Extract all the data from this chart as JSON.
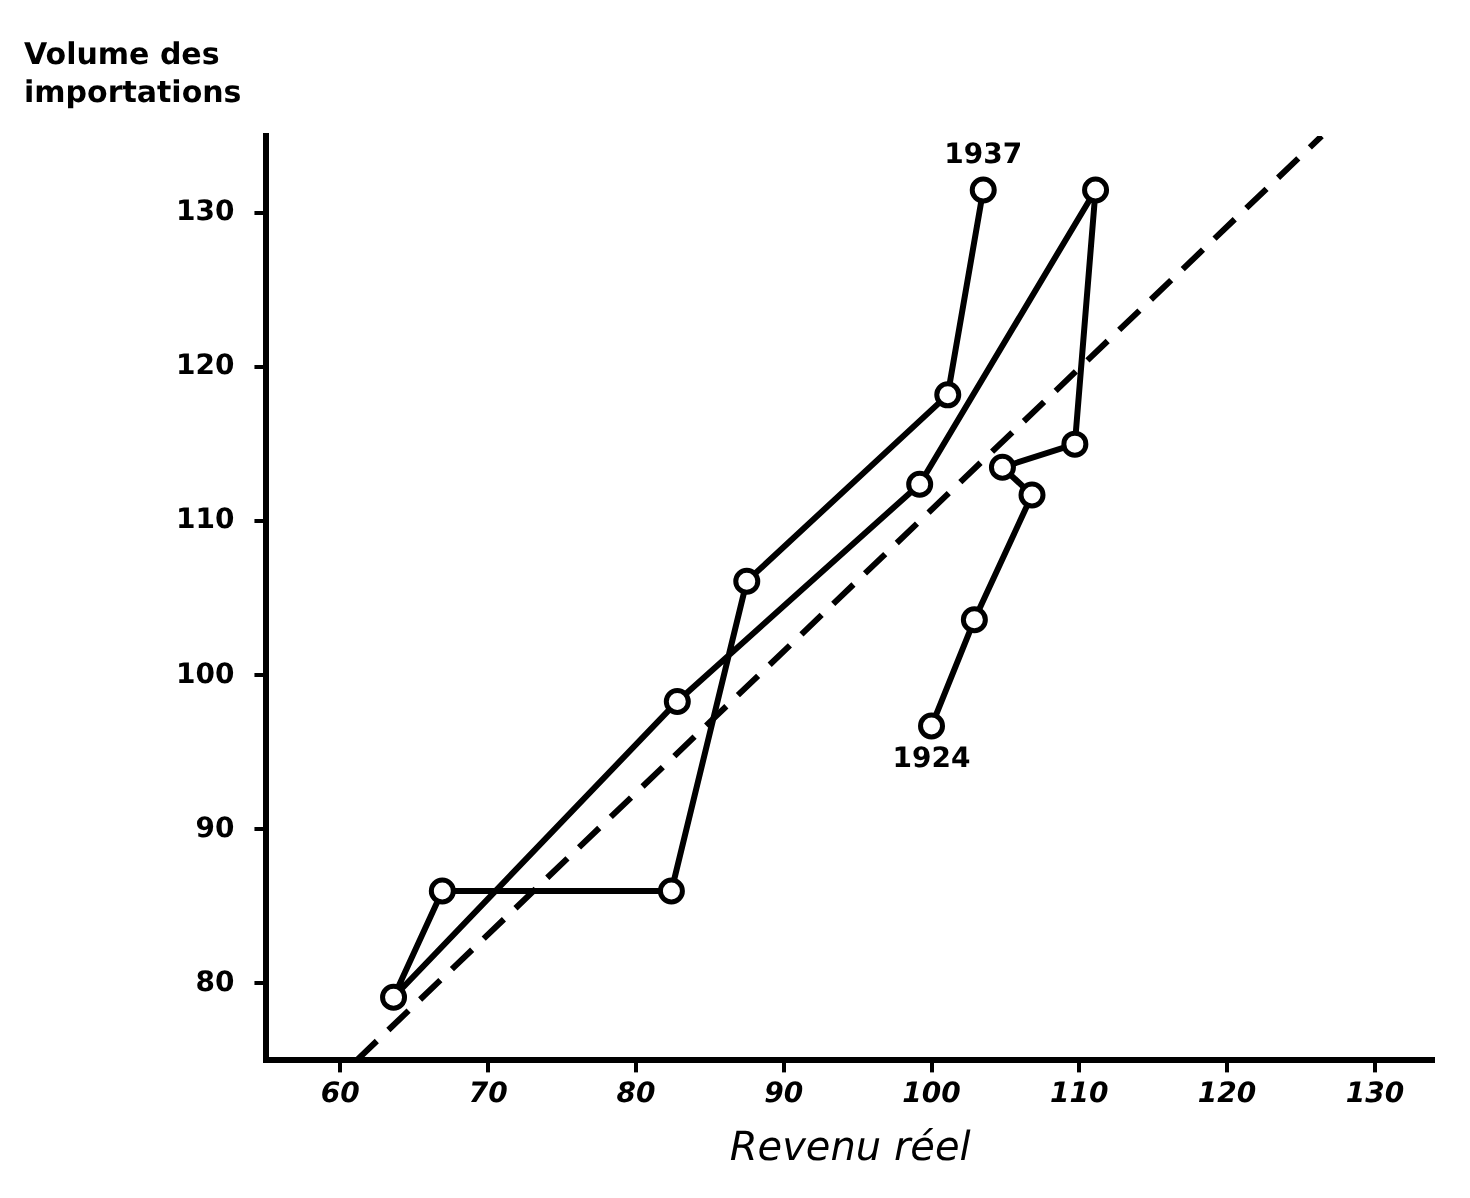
{
  "chart_data": {
    "type": "line",
    "xlabel": "Revenu réel",
    "ylabel": "Volume des importations",
    "xlim": [
      55,
      134
    ],
    "xticks": [
      60,
      70,
      80,
      90,
      100,
      110,
      120,
      130
    ],
    "ylim": [
      75,
      135
    ],
    "yticks": [
      80,
      90,
      100,
      110,
      120,
      130
    ],
    "grid": false,
    "legend": false,
    "series": [
      {
        "color": "#000000",
        "marker": "circle",
        "line_style": "solid",
        "x": [
          100.0,
          102.9,
          106.8,
          104.8,
          109.7,
          111.1,
          99.2,
          82.8,
          63.6,
          66.9,
          82.4,
          87.5,
          101.1,
          103.5
        ],
        "values": [
          96.7,
          103.6,
          111.7,
          113.5,
          115.0,
          131.5,
          112.4,
          98.3,
          79.1,
          86.0,
          86.0,
          106.1,
          118.2,
          131.5
        ]
      },
      {
        "color": "#000000",
        "marker": "none",
        "line_style": "dashed",
        "x": [
          61.1,
          126.4
        ],
        "values": [
          75,
          135
        ]
      }
    ],
    "annotations": [
      {
        "text": "1937",
        "x": 103.5,
        "y": 131.5
      },
      {
        "text": "1924",
        "x": 100.0,
        "y": 96.7
      }
    ]
  }
}
